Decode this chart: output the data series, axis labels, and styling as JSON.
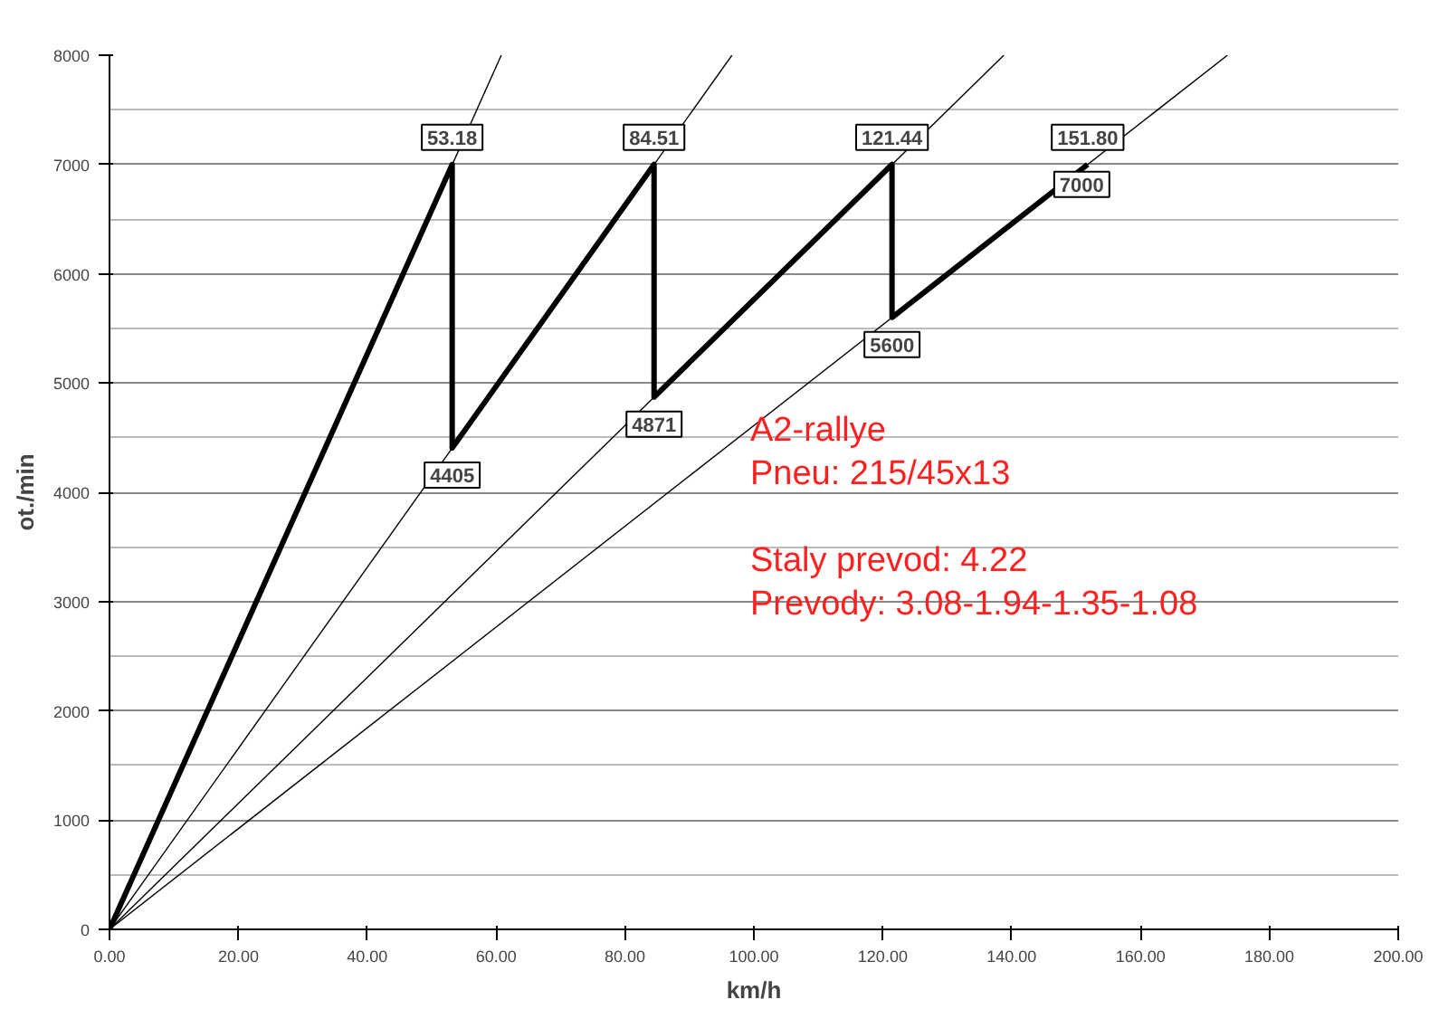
{
  "chart_data": {
    "type": "line",
    "xlabel": "km/h",
    "ylabel": "ot./min",
    "xlim": [
      0,
      200
    ],
    "ylim": [
      0,
      8000
    ],
    "xticks": [
      {
        "value": 0,
        "label": "0.00"
      },
      {
        "value": 20,
        "label": "20.00"
      },
      {
        "value": 40,
        "label": "40.00"
      },
      {
        "value": 60,
        "label": "60.00"
      },
      {
        "value": 80,
        "label": "80.00"
      },
      {
        "value": 100,
        "label": "100.00"
      },
      {
        "value": 120,
        "label": "120.00"
      },
      {
        "value": 140,
        "label": "140.00"
      },
      {
        "value": 160,
        "label": "160.00"
      },
      {
        "value": 180,
        "label": "180.00"
      },
      {
        "value": 200,
        "label": "200.00"
      }
    ],
    "yticks": [
      0,
      1000,
      2000,
      3000,
      4000,
      5000,
      6000,
      7000,
      8000
    ],
    "grid": true,
    "marker": "none",
    "line_style": "solid",
    "series": [
      {
        "color": "#000000",
        "x": [
          0,
          53.18,
          53.18,
          84.51,
          84.51,
          121.44,
          121.44,
          151.8
        ],
        "values": [
          0,
          7000,
          4405,
          7000,
          4871,
          7000,
          5600,
          7000
        ]
      },
      {
        "color": "#000000",
        "x": [
          0,
          60.8
        ],
        "values": [
          0,
          8000
        ]
      },
      {
        "color": "#000000",
        "x": [
          0,
          96.6
        ],
        "values": [
          0,
          8000
        ]
      },
      {
        "color": "#000000",
        "x": [
          0,
          138.8
        ],
        "values": [
          0,
          8000
        ]
      },
      {
        "color": "#000000",
        "x": [
          0,
          173.5
        ],
        "values": [
          0,
          8000
        ]
      }
    ],
    "annotations": [
      {
        "text": "53.18",
        "x": 53.18,
        "y": 7000
      },
      {
        "text": "4405",
        "x": 53.18,
        "y": 4405
      },
      {
        "text": "84.51",
        "x": 84.51,
        "y": 7000
      },
      {
        "text": "4871",
        "x": 84.51,
        "y": 4871
      },
      {
        "text": "121.44",
        "x": 121.44,
        "y": 7000
      },
      {
        "text": "5600",
        "x": 121.44,
        "y": 5600
      },
      {
        "text": "151.80",
        "x": 151.8,
        "y": 7000
      },
      {
        "text": "7000",
        "x": 151.8,
        "y": 7000
      },
      "A2-rallye",
      "Pneu: 215/45x13",
      "Staly prevod: 4.22",
      "Prevody: 3.08-1.94-1.35-1.08"
    ]
  }
}
